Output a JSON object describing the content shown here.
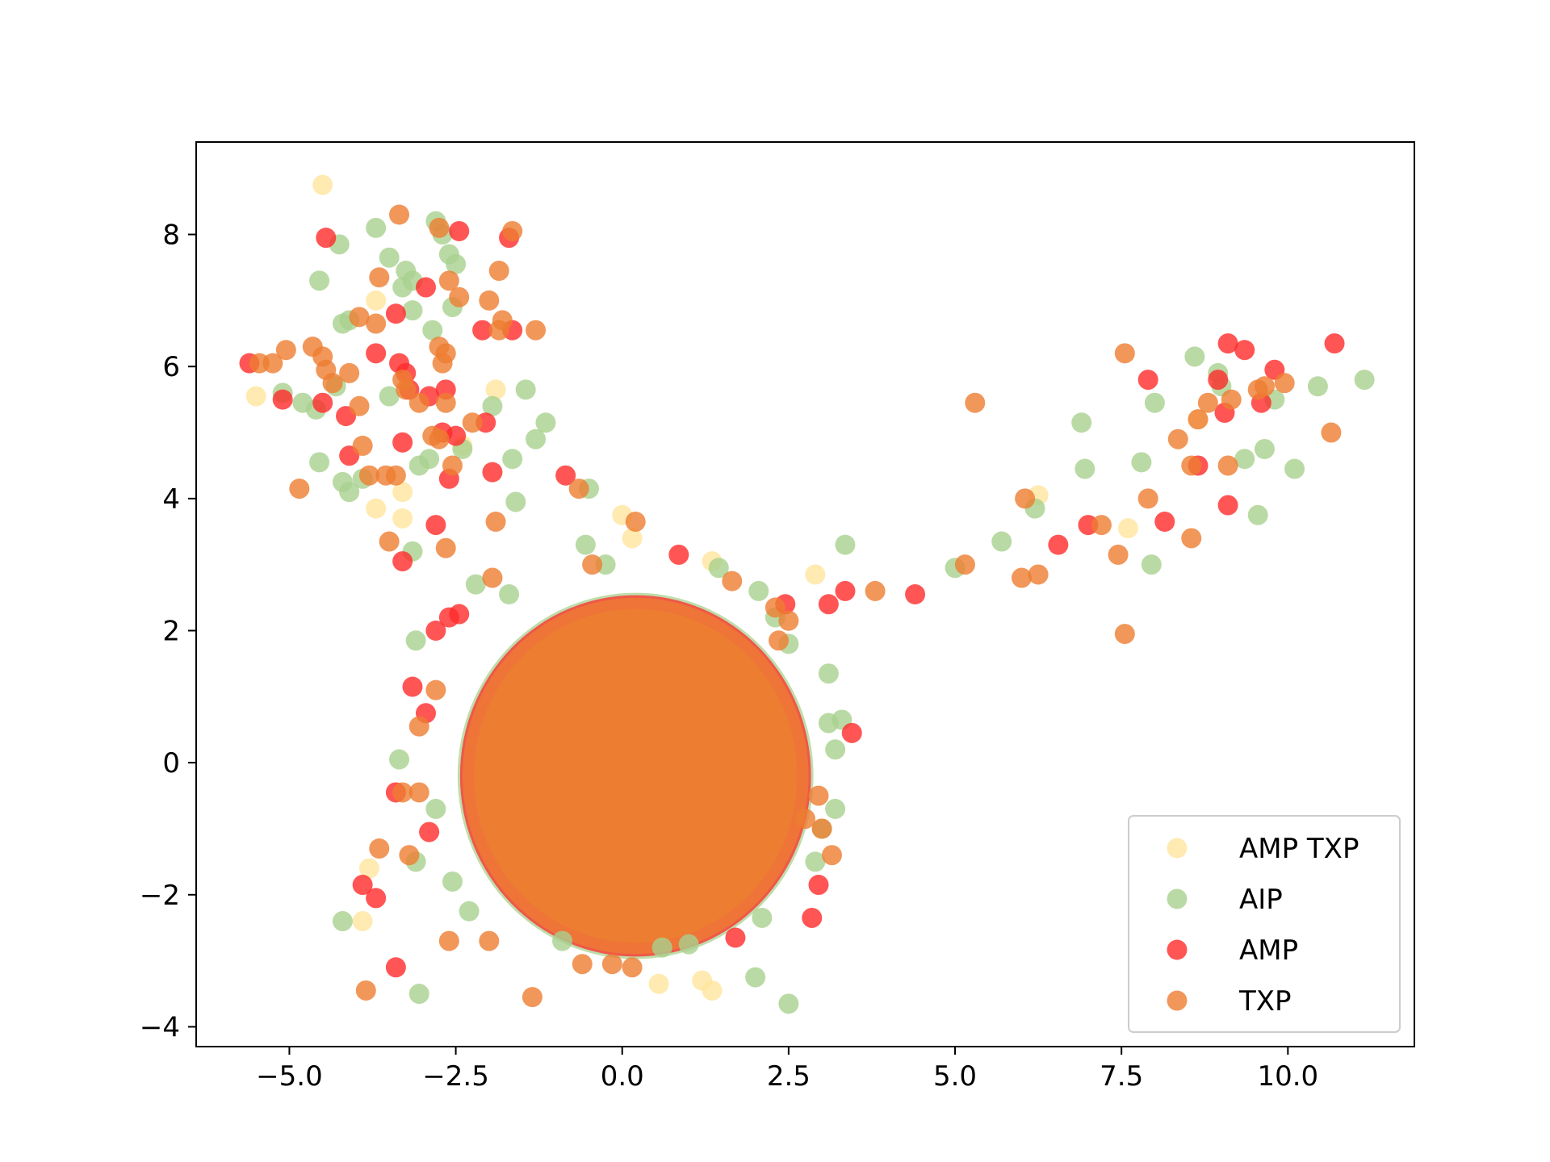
{
  "chart_data": {
    "type": "scatter",
    "title": "",
    "xlabel": "",
    "ylabel": "",
    "xlim": [
      -6.4,
      11.9
    ],
    "ylim": [
      -4.3,
      9.4
    ],
    "grid": false,
    "legend_position": "bottom-right",
    "x_ticks": [
      -5.0,
      -2.5,
      0.0,
      2.5,
      5.0,
      7.5,
      10.0
    ],
    "x_tick_labels": [
      "−5.0",
      "−2.5",
      "0.0",
      "2.5",
      "5.0",
      "7.5",
      "10.0"
    ],
    "y_ticks": [
      -4,
      -2,
      0,
      2,
      4,
      6,
      8
    ],
    "y_tick_labels": [
      "−4",
      "−2",
      "0",
      "2",
      "4",
      "6",
      "8"
    ],
    "central_cluster": {
      "center": [
        0.2,
        -0.2
      ],
      "radius": [
        2.6,
        2.7
      ]
    },
    "series": [
      {
        "name": "AMP TXP",
        "color": "#FFE59E",
        "points": [
          [
            -4.5,
            8.75
          ],
          [
            -3.7,
            7.0
          ],
          [
            -5.5,
            5.55
          ],
          [
            -1.9,
            5.65
          ],
          [
            -3.3,
            4.1
          ],
          [
            -3.7,
            3.85
          ],
          [
            -3.3,
            3.7
          ],
          [
            -2.4,
            4.8
          ],
          [
            0.0,
            3.75
          ],
          [
            0.15,
            3.4
          ],
          [
            1.35,
            3.05
          ],
          [
            2.9,
            2.85
          ],
          [
            6.25,
            4.05
          ],
          [
            7.6,
            3.55
          ],
          [
            8.65,
            5.2
          ],
          [
            -3.8,
            -1.6
          ],
          [
            -3.9,
            -2.4
          ],
          [
            0.55,
            -3.35
          ],
          [
            1.35,
            -3.45
          ],
          [
            1.2,
            -3.3
          ]
        ]
      },
      {
        "name": "AIP",
        "color": "#A9D18E",
        "points": [
          [
            -4.25,
            7.85
          ],
          [
            -3.7,
            8.1
          ],
          [
            -3.5,
            7.65
          ],
          [
            -3.25,
            7.45
          ],
          [
            -3.15,
            7.3
          ],
          [
            -2.8,
            8.2
          ],
          [
            -2.7,
            8.0
          ],
          [
            -2.6,
            7.7
          ],
          [
            -2.5,
            7.55
          ],
          [
            -4.55,
            7.3
          ],
          [
            -3.3,
            7.2
          ],
          [
            -2.85,
            6.55
          ],
          [
            -2.55,
            6.9
          ],
          [
            -4.2,
            6.65
          ],
          [
            -4.1,
            6.7
          ],
          [
            -3.15,
            6.85
          ],
          [
            -5.1,
            5.6
          ],
          [
            -4.8,
            5.45
          ],
          [
            -4.6,
            5.35
          ],
          [
            -4.3,
            5.7
          ],
          [
            -3.5,
            5.55
          ],
          [
            -1.45,
            5.65
          ],
          [
            -1.95,
            5.4
          ],
          [
            -1.3,
            4.9
          ],
          [
            -1.15,
            5.15
          ],
          [
            -1.65,
            4.6
          ],
          [
            -2.9,
            4.6
          ],
          [
            -2.4,
            4.75
          ],
          [
            -4.55,
            4.55
          ],
          [
            -4.2,
            4.25
          ],
          [
            -4.1,
            4.1
          ],
          [
            -3.9,
            4.3
          ],
          [
            -3.05,
            4.5
          ],
          [
            -3.15,
            3.2
          ],
          [
            -1.6,
            3.95
          ],
          [
            -2.2,
            2.7
          ],
          [
            -1.7,
            2.55
          ],
          [
            -0.5,
            4.15
          ],
          [
            -0.55,
            3.3
          ],
          [
            -0.25,
            3.0
          ],
          [
            -3.1,
            1.85
          ],
          [
            -3.35,
            0.05
          ],
          [
            -2.8,
            -0.7
          ],
          [
            -3.1,
            -1.5
          ],
          [
            -2.55,
            -1.8
          ],
          [
            -2.3,
            -2.25
          ],
          [
            1.45,
            2.95
          ],
          [
            2.05,
            2.6
          ],
          [
            2.3,
            2.2
          ],
          [
            2.5,
            1.8
          ],
          [
            3.1,
            1.35
          ],
          [
            3.1,
            0.6
          ],
          [
            3.2,
            0.2
          ],
          [
            3.3,
            0.65
          ],
          [
            3.2,
            -0.7
          ],
          [
            3.0,
            -1.0
          ],
          [
            2.9,
            -1.5
          ],
          [
            2.1,
            -2.35
          ],
          [
            2.0,
            -3.25
          ],
          [
            2.5,
            -3.65
          ],
          [
            -4.2,
            -2.4
          ],
          [
            -3.05,
            -3.5
          ],
          [
            3.35,
            3.3
          ],
          [
            5.0,
            2.95
          ],
          [
            5.7,
            3.35
          ],
          [
            6.2,
            3.85
          ],
          [
            6.9,
            5.15
          ],
          [
            6.95,
            4.45
          ],
          [
            7.8,
            4.55
          ],
          [
            7.95,
            3.0
          ],
          [
            8.0,
            5.45
          ],
          [
            8.6,
            6.15
          ],
          [
            8.95,
            5.9
          ],
          [
            9.0,
            5.7
          ],
          [
            9.35,
            4.6
          ],
          [
            9.55,
            3.75
          ],
          [
            9.65,
            4.75
          ],
          [
            9.8,
            5.5
          ],
          [
            10.1,
            4.45
          ],
          [
            10.45,
            5.7
          ],
          [
            11.15,
            5.8
          ],
          [
            0.6,
            -2.8
          ],
          [
            1.0,
            -2.75
          ],
          [
            -0.9,
            -2.7
          ]
        ]
      },
      {
        "name": "AMP",
        "color": "#FF2A2A",
        "points": [
          [
            -4.45,
            7.95
          ],
          [
            -1.7,
            7.95
          ],
          [
            -2.45,
            8.05
          ],
          [
            -2.95,
            7.2
          ],
          [
            -3.4,
            6.8
          ],
          [
            -2.1,
            6.55
          ],
          [
            -1.65,
            6.55
          ],
          [
            -5.6,
            6.05
          ],
          [
            -3.7,
            6.2
          ],
          [
            -3.35,
            6.05
          ],
          [
            -3.25,
            5.9
          ],
          [
            -2.65,
            5.65
          ],
          [
            -3.2,
            5.65
          ],
          [
            -2.9,
            5.55
          ],
          [
            -5.1,
            5.5
          ],
          [
            -4.5,
            5.45
          ],
          [
            -4.15,
            5.25
          ],
          [
            -2.05,
            5.15
          ],
          [
            -2.5,
            4.95
          ],
          [
            -3.3,
            4.85
          ],
          [
            -2.7,
            5.0
          ],
          [
            -4.1,
            4.65
          ],
          [
            -2.6,
            4.3
          ],
          [
            -1.95,
            4.4
          ],
          [
            -0.85,
            4.35
          ],
          [
            -2.8,
            3.6
          ],
          [
            -3.3,
            3.05
          ],
          [
            0.85,
            3.15
          ],
          [
            -2.6,
            2.2
          ],
          [
            -2.45,
            2.25
          ],
          [
            -2.8,
            2.0
          ],
          [
            -3.15,
            1.15
          ],
          [
            -2.95,
            0.75
          ],
          [
            -3.4,
            -0.45
          ],
          [
            -2.9,
            -1.05
          ],
          [
            -3.9,
            -1.85
          ],
          [
            -3.7,
            -2.05
          ],
          [
            -3.4,
            -3.1
          ],
          [
            2.45,
            2.4
          ],
          [
            3.1,
            2.4
          ],
          [
            3.35,
            2.6
          ],
          [
            4.4,
            2.55
          ],
          [
            3.45,
            0.45
          ],
          [
            2.95,
            -1.85
          ],
          [
            2.85,
            -2.35
          ],
          [
            1.7,
            -2.65
          ],
          [
            6.55,
            3.3
          ],
          [
            7.0,
            3.6
          ],
          [
            7.9,
            5.8
          ],
          [
            8.15,
            3.65
          ],
          [
            8.65,
            4.5
          ],
          [
            8.95,
            5.8
          ],
          [
            9.05,
            5.3
          ],
          [
            9.1,
            6.35
          ],
          [
            9.35,
            6.25
          ],
          [
            9.1,
            3.9
          ],
          [
            9.6,
            5.45
          ],
          [
            9.8,
            5.95
          ],
          [
            10.7,
            6.35
          ]
        ]
      },
      {
        "name": "TXP",
        "color": "#ED7D31",
        "points": [
          [
            -3.35,
            8.3
          ],
          [
            -2.75,
            8.1
          ],
          [
            -1.65,
            8.05
          ],
          [
            -3.65,
            7.35
          ],
          [
            -2.6,
            7.3
          ],
          [
            -1.85,
            7.45
          ],
          [
            -2.45,
            7.05
          ],
          [
            -2.0,
            7.0
          ],
          [
            -1.8,
            6.7
          ],
          [
            -1.85,
            6.55
          ],
          [
            -3.95,
            6.75
          ],
          [
            -3.7,
            6.65
          ],
          [
            -1.3,
            6.55
          ],
          [
            -4.65,
            6.3
          ],
          [
            -4.5,
            6.15
          ],
          [
            -5.45,
            6.05
          ],
          [
            -5.25,
            6.05
          ],
          [
            -5.05,
            6.25
          ],
          [
            -4.45,
            5.95
          ],
          [
            -4.35,
            5.75
          ],
          [
            -4.1,
            5.9
          ],
          [
            -3.3,
            5.8
          ],
          [
            -3.25,
            5.65
          ],
          [
            -2.75,
            6.3
          ],
          [
            -2.65,
            6.2
          ],
          [
            -2.7,
            6.05
          ],
          [
            -3.95,
            5.4
          ],
          [
            -2.65,
            5.45
          ],
          [
            -3.05,
            5.45
          ],
          [
            -3.9,
            4.8
          ],
          [
            -2.85,
            4.95
          ],
          [
            -2.75,
            4.9
          ],
          [
            -2.25,
            5.15
          ],
          [
            -3.8,
            4.35
          ],
          [
            -3.55,
            4.35
          ],
          [
            -3.4,
            4.35
          ],
          [
            -4.85,
            4.15
          ],
          [
            -2.55,
            4.5
          ],
          [
            -0.65,
            4.15
          ],
          [
            -3.5,
            3.35
          ],
          [
            -2.65,
            3.25
          ],
          [
            -1.9,
            3.65
          ],
          [
            0.2,
            3.65
          ],
          [
            -1.95,
            2.8
          ],
          [
            -0.45,
            3.0
          ],
          [
            1.65,
            2.75
          ],
          [
            2.3,
            2.35
          ],
          [
            2.5,
            2.15
          ],
          [
            2.35,
            1.85
          ],
          [
            3.8,
            2.6
          ],
          [
            5.15,
            3.0
          ],
          [
            5.3,
            5.45
          ],
          [
            6.0,
            2.8
          ],
          [
            6.05,
            4.0
          ],
          [
            6.25,
            2.85
          ],
          [
            7.2,
            3.6
          ],
          [
            7.45,
            3.15
          ],
          [
            7.55,
            6.2
          ],
          [
            7.55,
            1.95
          ],
          [
            7.9,
            4.0
          ],
          [
            8.35,
            4.9
          ],
          [
            8.55,
            3.4
          ],
          [
            8.55,
            4.5
          ],
          [
            8.65,
            5.2
          ],
          [
            8.8,
            5.45
          ],
          [
            9.1,
            4.5
          ],
          [
            9.15,
            5.5
          ],
          [
            9.55,
            5.65
          ],
          [
            9.65,
            5.7
          ],
          [
            9.95,
            5.75
          ],
          [
            10.65,
            5.0
          ],
          [
            -3.65,
            -1.3
          ],
          [
            -3.2,
            -1.4
          ],
          [
            -3.3,
            -0.45
          ],
          [
            -3.05,
            -0.45
          ],
          [
            -3.05,
            0.55
          ],
          [
            -2.8,
            1.1
          ],
          [
            -2.6,
            -2.7
          ],
          [
            -2.0,
            -2.7
          ],
          [
            -1.35,
            -3.55
          ],
          [
            -0.6,
            -3.05
          ],
          [
            -0.15,
            -3.05
          ],
          [
            0.15,
            -3.1
          ],
          [
            3.15,
            -1.4
          ],
          [
            2.75,
            -0.85
          ],
          [
            -3.85,
            -3.45
          ],
          [
            2.95,
            -0.5
          ],
          [
            3.0,
            -1.0
          ]
        ]
      }
    ]
  }
}
